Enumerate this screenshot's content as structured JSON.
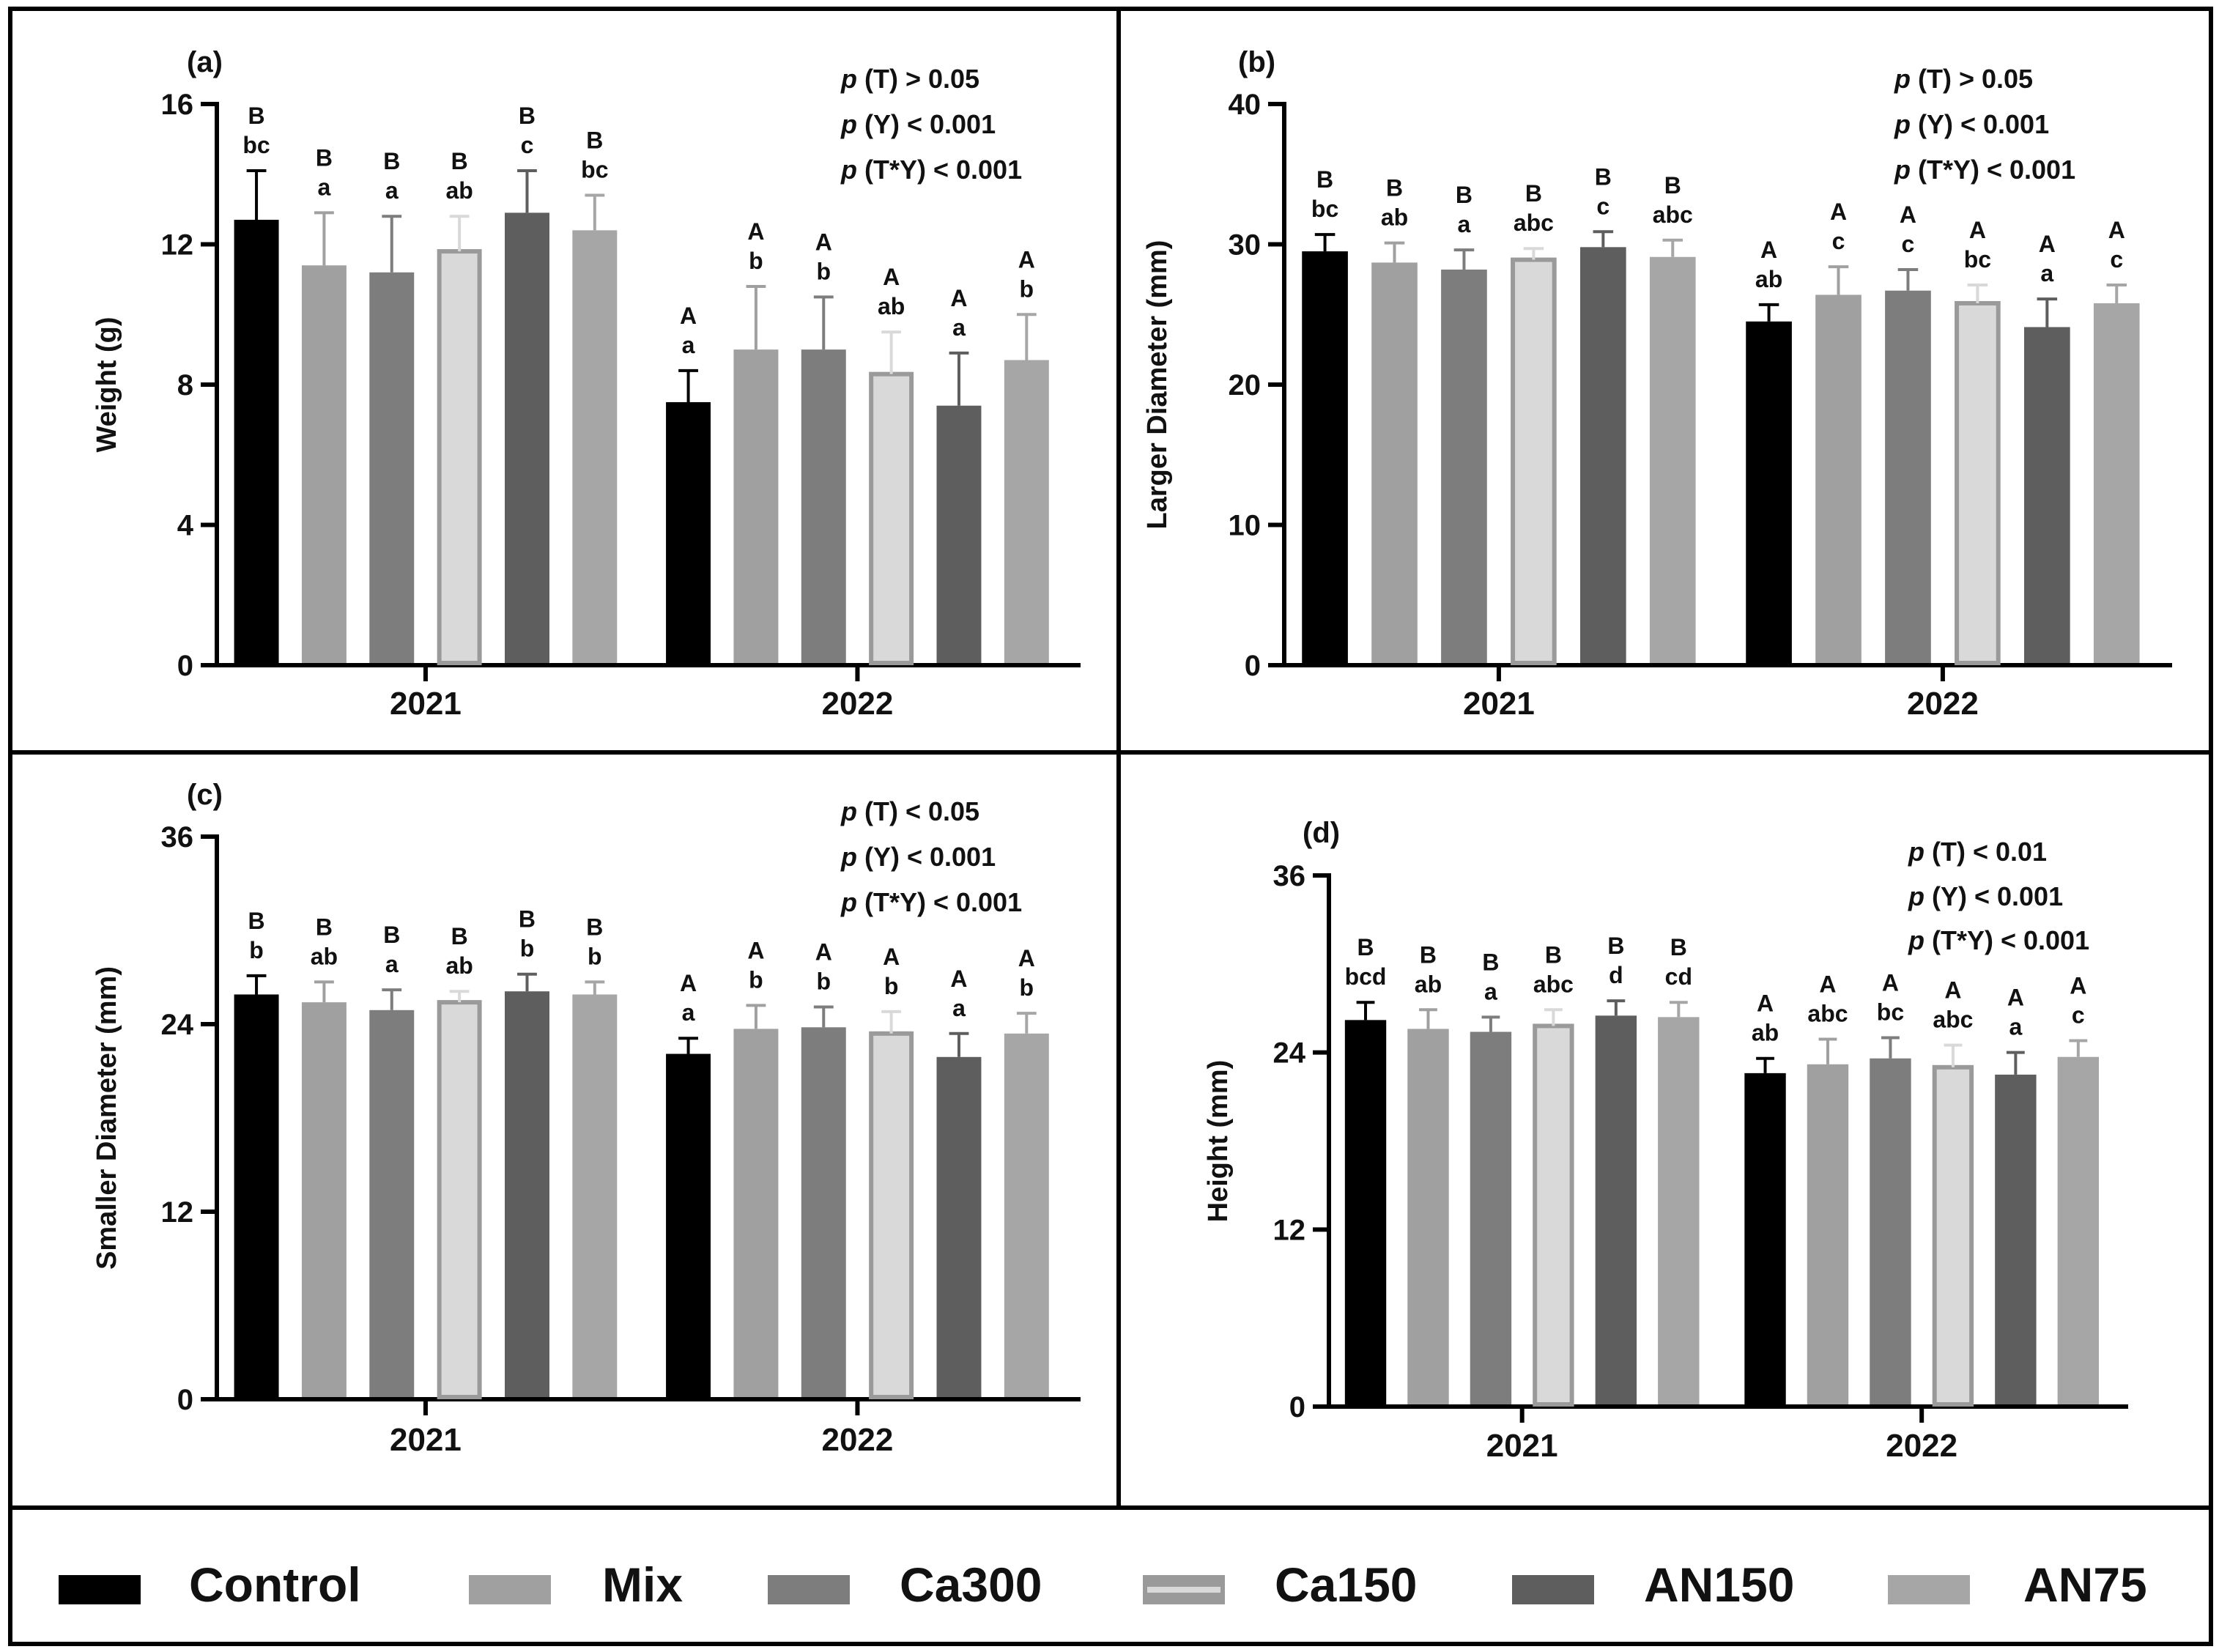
{
  "legend": {
    "items": [
      {
        "label": "Control",
        "color": "#000000",
        "outline": ""
      },
      {
        "label": "Mix",
        "color": "#a0a0a0",
        "outline": ""
      },
      {
        "label": "Ca300",
        "color": "#7d7d7d",
        "outline": ""
      },
      {
        "label": "Ca150",
        "color": "#d9d9d9",
        "outline": "#9a9a9a"
      },
      {
        "label": "AN150",
        "color": "#5e5e5e",
        "outline": ""
      },
      {
        "label": "AN75",
        "color": "#a6a6a6",
        "outline": ""
      }
    ]
  },
  "chart_data": [
    {
      "type": "bar",
      "panel_label": "(a)",
      "ylabel": "Weight (g)",
      "ylim": [
        0,
        16
      ],
      "yticks": [
        "0",
        "4",
        "8",
        "12",
        "16"
      ],
      "categories": [
        "2021",
        "2022"
      ],
      "stats": [
        "(T) > 0.05",
        "(Y) < 0.001",
        "(T*Y) < 0.001"
      ],
      "series": [
        {
          "name": "Control",
          "values": [
            12.7,
            7.5
          ],
          "errors": [
            1.4,
            0.9
          ],
          "letters_upper": [
            "B",
            "A"
          ],
          "letters_lower": [
            "bc",
            "a"
          ]
        },
        {
          "name": "Mix",
          "values": [
            11.4,
            9.0
          ],
          "errors": [
            1.5,
            1.8
          ],
          "letters_upper": [
            "B",
            "A"
          ],
          "letters_lower": [
            "a",
            "b"
          ]
        },
        {
          "name": "Ca300",
          "values": [
            11.2,
            9.0
          ],
          "errors": [
            1.6,
            1.5
          ],
          "letters_upper": [
            "B",
            "A"
          ],
          "letters_lower": [
            "a",
            "b"
          ]
        },
        {
          "name": "Ca150",
          "values": [
            11.8,
            8.3
          ],
          "errors": [
            1.0,
            1.2
          ],
          "letters_upper": [
            "B",
            "A"
          ],
          "letters_lower": [
            "ab",
            "ab"
          ]
        },
        {
          "name": "AN150",
          "values": [
            12.9,
            7.4
          ],
          "errors": [
            1.2,
            1.5
          ],
          "letters_upper": [
            "B",
            "A"
          ],
          "letters_lower": [
            "c",
            "a"
          ]
        },
        {
          "name": "AN75",
          "values": [
            12.4,
            8.7
          ],
          "errors": [
            1.0,
            1.3
          ],
          "letters_upper": [
            "B",
            "A"
          ],
          "letters_lower": [
            "bc",
            "b"
          ]
        }
      ]
    },
    {
      "type": "bar",
      "panel_label": "(b)",
      "ylabel": "Larger Diameter (mm)",
      "ylim": [
        0,
        40
      ],
      "yticks": [
        "0",
        "10",
        "20",
        "30",
        "40"
      ],
      "categories": [
        "2021",
        "2022"
      ],
      "stats": [
        "(T) > 0.05",
        "(Y) < 0.001",
        "(T*Y) < 0.001"
      ],
      "series": [
        {
          "name": "Control",
          "values": [
            29.5,
            24.5
          ],
          "errors": [
            1.2,
            1.2
          ],
          "letters_upper": [
            "B",
            "A"
          ],
          "letters_lower": [
            "bc",
            "ab"
          ]
        },
        {
          "name": "Mix",
          "values": [
            28.7,
            26.4
          ],
          "errors": [
            1.4,
            2.0
          ],
          "letters_upper": [
            "B",
            "A"
          ],
          "letters_lower": [
            "ab",
            "c"
          ]
        },
        {
          "name": "Ca300",
          "values": [
            28.2,
            26.7
          ],
          "errors": [
            1.4,
            1.5
          ],
          "letters_upper": [
            "B",
            "A"
          ],
          "letters_lower": [
            "a",
            "c"
          ]
        },
        {
          "name": "Ca150",
          "values": [
            28.9,
            25.8
          ],
          "errors": [
            0.8,
            1.3
          ],
          "letters_upper": [
            "B",
            "A"
          ],
          "letters_lower": [
            "abc",
            "bc"
          ]
        },
        {
          "name": "AN150",
          "values": [
            29.8,
            24.1
          ],
          "errors": [
            1.1,
            2.0
          ],
          "letters_upper": [
            "B",
            "A"
          ],
          "letters_lower": [
            "c",
            "a"
          ]
        },
        {
          "name": "AN75",
          "values": [
            29.1,
            25.8
          ],
          "errors": [
            1.2,
            1.3
          ],
          "letters_upper": [
            "B",
            "A"
          ],
          "letters_lower": [
            "abc",
            "c"
          ]
        }
      ]
    },
    {
      "type": "bar",
      "panel_label": "(c)",
      "ylabel": "Smaller Diameter (mm)",
      "ylim": [
        0,
        36
      ],
      "yticks": [
        "0",
        "12",
        "24",
        "36"
      ],
      "categories": [
        "2021",
        "2022"
      ],
      "stats": [
        "(T) < 0.05",
        "(Y) < 0.001",
        "(T*Y) < 0.001"
      ],
      "series": [
        {
          "name": "Control",
          "values": [
            25.9,
            22.1
          ],
          "errors": [
            1.2,
            1.0
          ],
          "letters_upper": [
            "B",
            "A"
          ],
          "letters_lower": [
            "b",
            "a"
          ]
        },
        {
          "name": "Mix",
          "values": [
            25.4,
            23.7
          ],
          "errors": [
            1.3,
            1.5
          ],
          "letters_upper": [
            "B",
            "A"
          ],
          "letters_lower": [
            "ab",
            "b"
          ]
        },
        {
          "name": "Ca300",
          "values": [
            24.9,
            23.8
          ],
          "errors": [
            1.3,
            1.3
          ],
          "letters_upper": [
            "B",
            "A"
          ],
          "letters_lower": [
            "a",
            "b"
          ]
        },
        {
          "name": "Ca150",
          "values": [
            25.4,
            23.4
          ],
          "errors": [
            0.7,
            1.4
          ],
          "letters_upper": [
            "B",
            "A"
          ],
          "letters_lower": [
            "ab",
            "b"
          ]
        },
        {
          "name": "AN150",
          "values": [
            26.1,
            21.9
          ],
          "errors": [
            1.1,
            1.5
          ],
          "letters_upper": [
            "B",
            "A"
          ],
          "letters_lower": [
            "b",
            "a"
          ]
        },
        {
          "name": "AN75",
          "values": [
            25.9,
            23.4
          ],
          "errors": [
            0.8,
            1.3
          ],
          "letters_upper": [
            "B",
            "A"
          ],
          "letters_lower": [
            "b",
            "b"
          ]
        }
      ]
    },
    {
      "type": "bar",
      "panel_label": "(d)",
      "ylabel": "Height (mm)",
      "ylim": [
        0,
        36
      ],
      "yticks": [
        "0",
        "12",
        "24",
        "36"
      ],
      "categories": [
        "2021",
        "2022"
      ],
      "stats": [
        "(T) < 0.01",
        "(Y) < 0.001",
        "(T*Y) < 0.001"
      ],
      "series": [
        {
          "name": "Control",
          "values": [
            26.2,
            22.6
          ],
          "errors": [
            1.2,
            1.0
          ],
          "letters_upper": [
            "B",
            "A"
          ],
          "letters_lower": [
            "bcd",
            "ab"
          ]
        },
        {
          "name": "Mix",
          "values": [
            25.6,
            23.2
          ],
          "errors": [
            1.3,
            1.7
          ],
          "letters_upper": [
            "B",
            "A"
          ],
          "letters_lower": [
            "ab",
            "abc"
          ]
        },
        {
          "name": "Ca300",
          "values": [
            25.4,
            23.6
          ],
          "errors": [
            1.0,
            1.4
          ],
          "letters_upper": [
            "B",
            "A"
          ],
          "letters_lower": [
            "a",
            "bc"
          ]
        },
        {
          "name": "Ca150",
          "values": [
            25.8,
            23.0
          ],
          "errors": [
            1.1,
            1.5
          ],
          "letters_upper": [
            "B",
            "A"
          ],
          "letters_lower": [
            "abc",
            "abc"
          ]
        },
        {
          "name": "AN150",
          "values": [
            26.5,
            22.5
          ],
          "errors": [
            1.0,
            1.5
          ],
          "letters_upper": [
            "B",
            "A"
          ],
          "letters_lower": [
            "d",
            "a"
          ]
        },
        {
          "name": "AN75",
          "values": [
            26.4,
            23.7
          ],
          "errors": [
            1.0,
            1.1
          ],
          "letters_upper": [
            "B",
            "A"
          ],
          "letters_lower": [
            "cd",
            "c"
          ]
        }
      ]
    }
  ]
}
